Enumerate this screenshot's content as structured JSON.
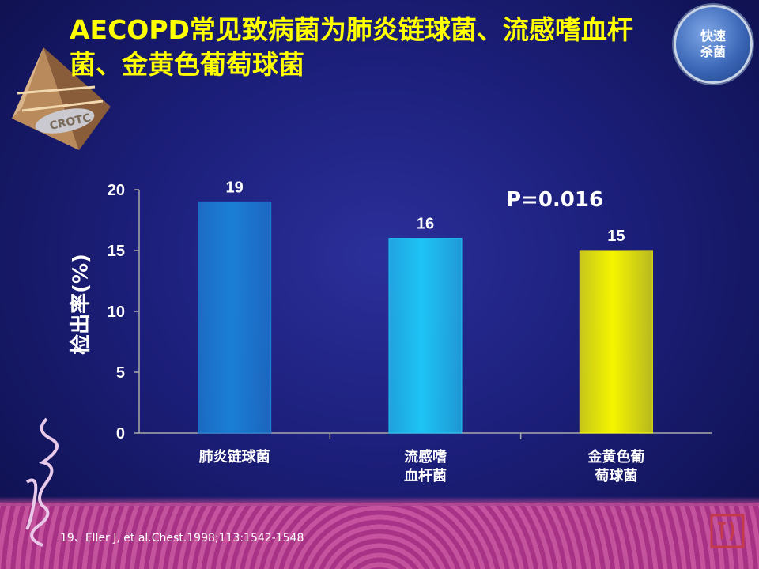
{
  "title": "AECOPD常见致病菌为肺炎链球菌、流感嗜血杆菌、金黄色葡萄球菌",
  "badge": {
    "line1": "快速",
    "line2": "杀菌"
  },
  "logo": {
    "text": "CROTC"
  },
  "annotation": "P=0.016",
  "citation": "19、Eller J, et al.Chest.1998;113:1542-1548",
  "colors": {
    "bar1": "#1b7fd6",
    "bar2": "#1ec4f5",
    "bar3": "#f5f500",
    "axis": "#aaaaaa",
    "text": "#ffffff"
  },
  "chart_data": {
    "type": "bar",
    "categories": [
      "肺炎链球菌",
      "流感嗜血杆菌",
      "金黄色葡萄球菌"
    ],
    "category_lines": [
      [
        "肺炎链球菌"
      ],
      [
        "流感嗜",
        "血杆菌"
      ],
      [
        "金黄色葡",
        "萄球菌"
      ]
    ],
    "values": [
      19,
      16,
      15
    ],
    "data_labels": [
      "19",
      "16",
      "15"
    ],
    "ylabel": "检出率(%)",
    "ylim": [
      0,
      20
    ],
    "yticks": [
      0,
      5,
      10,
      15,
      20
    ],
    "grid": false,
    "legend": "none"
  }
}
